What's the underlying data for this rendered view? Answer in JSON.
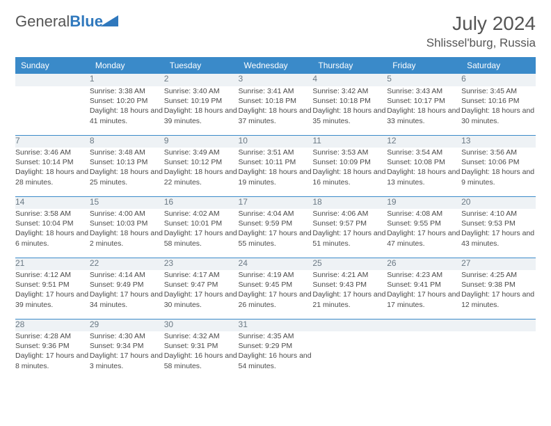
{
  "logo": {
    "word1": "General",
    "word2": "Blue"
  },
  "title": "July 2024",
  "location": "Shlissel'burg, Russia",
  "colors": {
    "header_bg": "#3a8ac9",
    "header_text": "#ffffff",
    "daynum_bg": "#eef2f5",
    "daynum_text": "#6b7984",
    "rule": "#3a8ac9",
    "body_text": "#4a4a4a",
    "logo_blue": "#2f78bd",
    "logo_gray": "#555555"
  },
  "dayHeaders": [
    "Sunday",
    "Monday",
    "Tuesday",
    "Wednesday",
    "Thursday",
    "Friday",
    "Saturday"
  ],
  "weeks": [
    [
      {
        "n": "",
        "sr": "",
        "ss": "",
        "dl": ""
      },
      {
        "n": "1",
        "sr": "Sunrise: 3:38 AM",
        "ss": "Sunset: 10:20 PM",
        "dl": "Daylight: 18 hours and 41 minutes."
      },
      {
        "n": "2",
        "sr": "Sunrise: 3:40 AM",
        "ss": "Sunset: 10:19 PM",
        "dl": "Daylight: 18 hours and 39 minutes."
      },
      {
        "n": "3",
        "sr": "Sunrise: 3:41 AM",
        "ss": "Sunset: 10:18 PM",
        "dl": "Daylight: 18 hours and 37 minutes."
      },
      {
        "n": "4",
        "sr": "Sunrise: 3:42 AM",
        "ss": "Sunset: 10:18 PM",
        "dl": "Daylight: 18 hours and 35 minutes."
      },
      {
        "n": "5",
        "sr": "Sunrise: 3:43 AM",
        "ss": "Sunset: 10:17 PM",
        "dl": "Daylight: 18 hours and 33 minutes."
      },
      {
        "n": "6",
        "sr": "Sunrise: 3:45 AM",
        "ss": "Sunset: 10:16 PM",
        "dl": "Daylight: 18 hours and 30 minutes."
      }
    ],
    [
      {
        "n": "7",
        "sr": "Sunrise: 3:46 AM",
        "ss": "Sunset: 10:14 PM",
        "dl": "Daylight: 18 hours and 28 minutes."
      },
      {
        "n": "8",
        "sr": "Sunrise: 3:48 AM",
        "ss": "Sunset: 10:13 PM",
        "dl": "Daylight: 18 hours and 25 minutes."
      },
      {
        "n": "9",
        "sr": "Sunrise: 3:49 AM",
        "ss": "Sunset: 10:12 PM",
        "dl": "Daylight: 18 hours and 22 minutes."
      },
      {
        "n": "10",
        "sr": "Sunrise: 3:51 AM",
        "ss": "Sunset: 10:11 PM",
        "dl": "Daylight: 18 hours and 19 minutes."
      },
      {
        "n": "11",
        "sr": "Sunrise: 3:53 AM",
        "ss": "Sunset: 10:09 PM",
        "dl": "Daylight: 18 hours and 16 minutes."
      },
      {
        "n": "12",
        "sr": "Sunrise: 3:54 AM",
        "ss": "Sunset: 10:08 PM",
        "dl": "Daylight: 18 hours and 13 minutes."
      },
      {
        "n": "13",
        "sr": "Sunrise: 3:56 AM",
        "ss": "Sunset: 10:06 PM",
        "dl": "Daylight: 18 hours and 9 minutes."
      }
    ],
    [
      {
        "n": "14",
        "sr": "Sunrise: 3:58 AM",
        "ss": "Sunset: 10:04 PM",
        "dl": "Daylight: 18 hours and 6 minutes."
      },
      {
        "n": "15",
        "sr": "Sunrise: 4:00 AM",
        "ss": "Sunset: 10:03 PM",
        "dl": "Daylight: 18 hours and 2 minutes."
      },
      {
        "n": "16",
        "sr": "Sunrise: 4:02 AM",
        "ss": "Sunset: 10:01 PM",
        "dl": "Daylight: 17 hours and 58 minutes."
      },
      {
        "n": "17",
        "sr": "Sunrise: 4:04 AM",
        "ss": "Sunset: 9:59 PM",
        "dl": "Daylight: 17 hours and 55 minutes."
      },
      {
        "n": "18",
        "sr": "Sunrise: 4:06 AM",
        "ss": "Sunset: 9:57 PM",
        "dl": "Daylight: 17 hours and 51 minutes."
      },
      {
        "n": "19",
        "sr": "Sunrise: 4:08 AM",
        "ss": "Sunset: 9:55 PM",
        "dl": "Daylight: 17 hours and 47 minutes."
      },
      {
        "n": "20",
        "sr": "Sunrise: 4:10 AM",
        "ss": "Sunset: 9:53 PM",
        "dl": "Daylight: 17 hours and 43 minutes."
      }
    ],
    [
      {
        "n": "21",
        "sr": "Sunrise: 4:12 AM",
        "ss": "Sunset: 9:51 PM",
        "dl": "Daylight: 17 hours and 39 minutes."
      },
      {
        "n": "22",
        "sr": "Sunrise: 4:14 AM",
        "ss": "Sunset: 9:49 PM",
        "dl": "Daylight: 17 hours and 34 minutes."
      },
      {
        "n": "23",
        "sr": "Sunrise: 4:17 AM",
        "ss": "Sunset: 9:47 PM",
        "dl": "Daylight: 17 hours and 30 minutes."
      },
      {
        "n": "24",
        "sr": "Sunrise: 4:19 AM",
        "ss": "Sunset: 9:45 PM",
        "dl": "Daylight: 17 hours and 26 minutes."
      },
      {
        "n": "25",
        "sr": "Sunrise: 4:21 AM",
        "ss": "Sunset: 9:43 PM",
        "dl": "Daylight: 17 hours and 21 minutes."
      },
      {
        "n": "26",
        "sr": "Sunrise: 4:23 AM",
        "ss": "Sunset: 9:41 PM",
        "dl": "Daylight: 17 hours and 17 minutes."
      },
      {
        "n": "27",
        "sr": "Sunrise: 4:25 AM",
        "ss": "Sunset: 9:38 PM",
        "dl": "Daylight: 17 hours and 12 minutes."
      }
    ],
    [
      {
        "n": "28",
        "sr": "Sunrise: 4:28 AM",
        "ss": "Sunset: 9:36 PM",
        "dl": "Daylight: 17 hours and 8 minutes."
      },
      {
        "n": "29",
        "sr": "Sunrise: 4:30 AM",
        "ss": "Sunset: 9:34 PM",
        "dl": "Daylight: 17 hours and 3 minutes."
      },
      {
        "n": "30",
        "sr": "Sunrise: 4:32 AM",
        "ss": "Sunset: 9:31 PM",
        "dl": "Daylight: 16 hours and 58 minutes."
      },
      {
        "n": "31",
        "sr": "Sunrise: 4:35 AM",
        "ss": "Sunset: 9:29 PM",
        "dl": "Daylight: 16 hours and 54 minutes."
      },
      {
        "n": "",
        "sr": "",
        "ss": "",
        "dl": ""
      },
      {
        "n": "",
        "sr": "",
        "ss": "",
        "dl": ""
      },
      {
        "n": "",
        "sr": "",
        "ss": "",
        "dl": ""
      }
    ]
  ]
}
